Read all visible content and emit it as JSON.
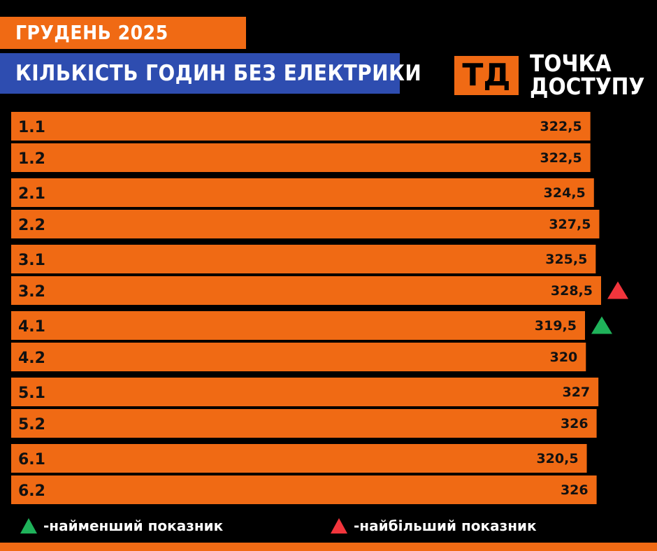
{
  "header": {
    "title_month": "ГРУДЕНЬ 2025",
    "title_main": "КІЛЬКІСТЬ ГОДИН БЕЗ ЕЛЕКТРИКИ"
  },
  "logo": {
    "mark": "ТД",
    "line1": "ТОЧКА",
    "line2": "ДОСТУПУ"
  },
  "colors": {
    "bar": "#f06a14",
    "title_month_bg": "#f06a14",
    "title_main_bg": "#2e4db0",
    "marker_min": "#1fb25a",
    "marker_max": "#f2353c",
    "background": "#000000"
  },
  "chart_data": {
    "type": "bar",
    "orientation": "horizontal",
    "categories": [
      "1.1",
      "1.2",
      "2.1",
      "2.2",
      "3.1",
      "3.2",
      "4.1",
      "4.2",
      "5.1",
      "5.2",
      "6.1",
      "6.2"
    ],
    "values": [
      322.5,
      322.5,
      324.5,
      327.5,
      325.5,
      328.5,
      319.5,
      320,
      327,
      326,
      320.5,
      326
    ],
    "value_labels": [
      "322,5",
      "322,5",
      "324,5",
      "327,5",
      "325,5",
      "328,5",
      "319,5",
      "320",
      "327",
      "326",
      "320,5",
      "326"
    ],
    "min_marker_index": 6,
    "max_marker_index": 5,
    "grid": false
  },
  "legend": {
    "min_label": "-найменший показник",
    "max_label": "-найбільший показник",
    "min_icon": "green-triangle-icon",
    "max_icon": "red-triangle-icon"
  }
}
